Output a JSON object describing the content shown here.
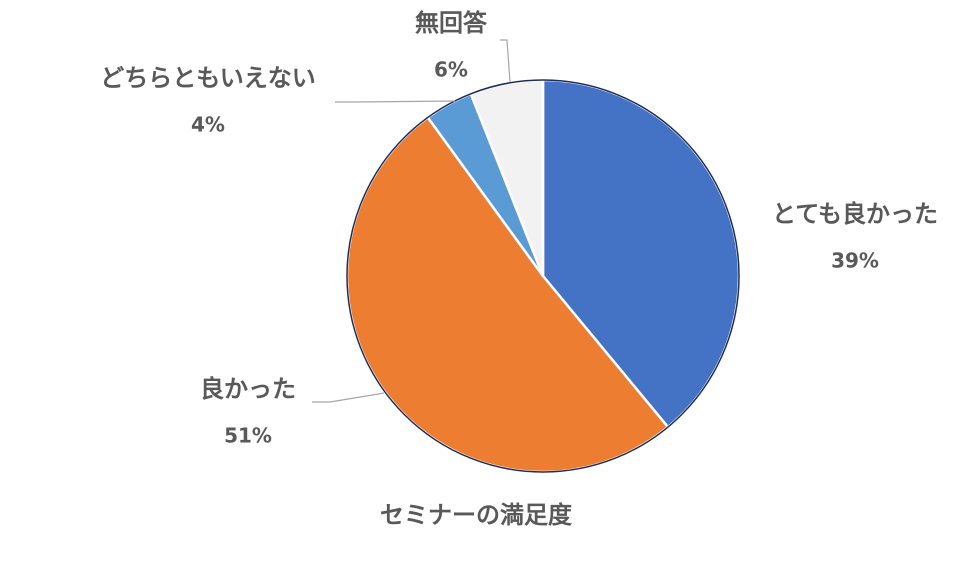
{
  "chart_data": {
    "type": "pie",
    "title": "セミナーの満足度",
    "categories": [
      "とても良かった",
      "良かった",
      "どちらともいえない",
      "無回答"
    ],
    "values": [
      39,
      51,
      4,
      6
    ],
    "value_labels": [
      "39%",
      "51%",
      "4%",
      "6%"
    ],
    "colors": [
      "#4472c4",
      "#ed7d31",
      "#5b9bd5",
      "#f2f2f2"
    ]
  }
}
